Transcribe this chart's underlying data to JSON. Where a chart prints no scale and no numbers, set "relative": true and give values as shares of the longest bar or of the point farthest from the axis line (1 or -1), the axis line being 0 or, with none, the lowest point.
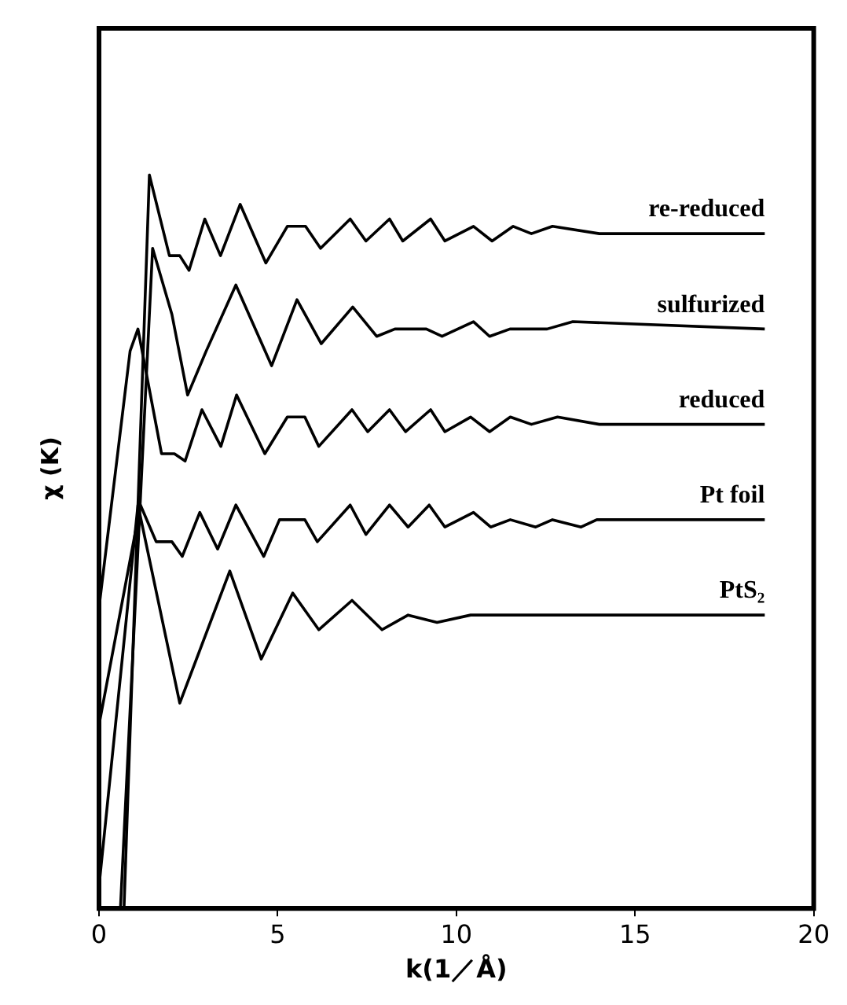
{
  "chart_data": {
    "type": "line",
    "relative": true,
    "xlabel": "k(1／Å)",
    "ylabel": "χ (K)",
    "xlim": [
      0,
      20
    ],
    "xticks": [
      0,
      5,
      10,
      15,
      20
    ],
    "grid": false,
    "legend": false,
    "marker": "none",
    "line_style": "solid",
    "series": [
      {
        "name": "re-reduced",
        "color": "#000000",
        "x": [
          0.7,
          1.41,
          1.97,
          2.26,
          2.52,
          2.96,
          3.4,
          3.95,
          4.67,
          5.27,
          5.78,
          6.2,
          7.03,
          7.47,
          8.13,
          8.5,
          9.28,
          9.68,
          10.48,
          11.0,
          11.59,
          12.1,
          12.69,
          14,
          15.46,
          18.63
        ],
        "values": [
          0,
          1.0,
          0.89,
          0.89,
          0.87,
          0.94,
          0.89,
          0.96,
          0.88,
          0.93,
          0.93,
          0.9,
          0.94,
          0.91,
          0.94,
          0.91,
          0.94,
          0.91,
          0.93,
          0.91,
          0.93,
          0.92,
          0.93,
          0.92,
          0.92,
          0.92
        ]
      },
      {
        "name": "sulfurized",
        "color": "#000000",
        "x": [
          0.6,
          1.5,
          2.04,
          2.48,
          3.0,
          3.83,
          4.83,
          5.54,
          6.22,
          7.1,
          7.77,
          8.28,
          9.16,
          9.6,
          10.48,
          10.93,
          11.5,
          12.54,
          13.26,
          18.63
        ],
        "values": [
          0,
          0.9,
          0.81,
          0.7,
          0.76,
          0.85,
          0.74,
          0.83,
          0.77,
          0.82,
          0.78,
          0.79,
          0.79,
          0.78,
          0.8,
          0.78,
          0.79,
          0.79,
          0.8,
          0.79
        ]
      },
      {
        "name": "reduced",
        "color": "#000000",
        "x": [
          0,
          0.87,
          1.09,
          1.75,
          2.11,
          2.41,
          2.88,
          3.41,
          3.85,
          4.64,
          5.27,
          5.76,
          6.15,
          7.08,
          7.52,
          8.13,
          8.58,
          9.28,
          9.68,
          10.4,
          10.93,
          11.51,
          12.1,
          12.83,
          14,
          18.63
        ],
        "values": [
          0.41,
          0.76,
          0.79,
          0.62,
          0.62,
          0.61,
          0.68,
          0.63,
          0.7,
          0.62,
          0.67,
          0.67,
          0.63,
          0.68,
          0.65,
          0.68,
          0.65,
          0.68,
          0.65,
          0.67,
          0.65,
          0.67,
          0.66,
          0.67,
          0.66,
          0.66
        ]
      },
      {
        "name": "Pt foil",
        "color": "#000000",
        "x": [
          0,
          1.16,
          1.6,
          2.04,
          2.33,
          2.82,
          3.32,
          3.83,
          4.61,
          5.05,
          5.76,
          6.11,
          7.03,
          7.47,
          8.13,
          8.65,
          9.24,
          9.68,
          10.48,
          10.96,
          11.51,
          12.22,
          12.69,
          13.49,
          13.93,
          15.19,
          18.63
        ],
        "values": [
          0.25,
          0.55,
          0.5,
          0.5,
          0.48,
          0.54,
          0.49,
          0.55,
          0.48,
          0.53,
          0.53,
          0.5,
          0.55,
          0.51,
          0.55,
          0.52,
          0.55,
          0.52,
          0.54,
          0.52,
          0.53,
          0.52,
          0.53,
          0.52,
          0.53,
          0.53,
          0.53
        ]
      },
      {
        "name": "PtS₂",
        "color": "#000000",
        "x": [
          0,
          1.09,
          2.26,
          3.66,
          4.54,
          5.42,
          6.15,
          7.08,
          7.92,
          8.65,
          9.46,
          10.4,
          18.63
        ],
        "values": [
          0.03,
          0.55,
          0.28,
          0.46,
          0.34,
          0.43,
          0.38,
          0.42,
          0.38,
          0.4,
          0.39,
          0.4,
          0.4
        ]
      }
    ]
  }
}
